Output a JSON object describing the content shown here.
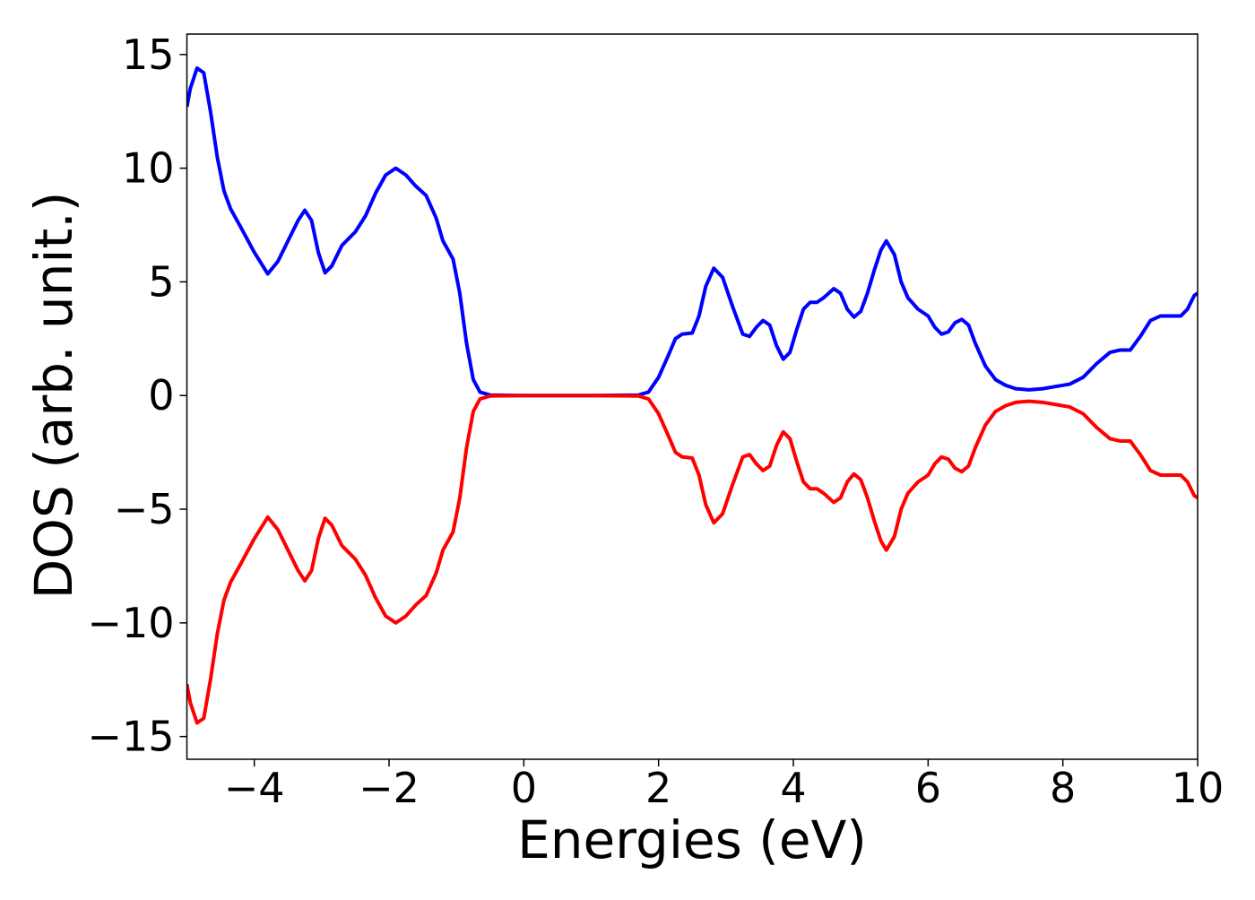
{
  "chart_data": {
    "type": "line",
    "x_label": "Energies (eV)",
    "y_label": "DOS (arb. unit.)",
    "x": [
      -5,
      -4.95,
      -4.85,
      -4.75,
      -4.65,
      -4.55,
      -4.45,
      -4.35,
      -4.2,
      -4.0,
      -3.8,
      -3.65,
      -3.5,
      -3.35,
      -3.25,
      -3.15,
      -3.05,
      -2.95,
      -2.85,
      -2.7,
      -2.5,
      -2.35,
      -2.2,
      -2.05,
      -1.9,
      -1.75,
      -1.6,
      -1.45,
      -1.3,
      -1.2,
      -1.05,
      -0.95,
      -0.85,
      -0.75,
      -0.65,
      -0.5,
      0,
      1.0,
      1.7,
      1.85,
      2.0,
      2.15,
      2.25,
      2.35,
      2.5,
      2.6,
      2.7,
      2.82,
      2.95,
      3.1,
      3.25,
      3.35,
      3.45,
      3.55,
      3.65,
      3.75,
      3.85,
      3.95,
      4.05,
      4.15,
      4.25,
      4.35,
      4.45,
      4.6,
      4.7,
      4.8,
      4.9,
      5.0,
      5.1,
      5.2,
      5.3,
      5.38,
      5.5,
      5.6,
      5.7,
      5.85,
      6.0,
      6.1,
      6.2,
      6.3,
      6.4,
      6.5,
      6.6,
      6.7,
      6.85,
      7.0,
      7.15,
      7.3,
      7.5,
      7.7,
      7.9,
      8.1,
      8.3,
      8.5,
      8.7,
      8.85,
      9.0,
      9.15,
      9.3,
      9.45,
      9.6,
      9.75,
      9.85,
      9.95,
      10
    ],
    "series": [
      {
        "color": "#0000ff",
        "values": [
          12.7,
          13.5,
          14.4,
          14.2,
          12.5,
          10.5,
          9.0,
          8.2,
          7.4,
          6.3,
          5.35,
          5.9,
          6.8,
          7.7,
          8.15,
          7.7,
          6.3,
          5.4,
          5.7,
          6.6,
          7.2,
          7.9,
          8.9,
          9.7,
          10.0,
          9.7,
          9.2,
          8.8,
          7.8,
          6.8,
          6.0,
          4.5,
          2.3,
          0.7,
          0.15,
          0.02,
          0,
          0,
          0.02,
          0.15,
          0.8,
          1.8,
          2.5,
          2.7,
          2.75,
          3.5,
          4.8,
          5.6,
          5.2,
          3.9,
          2.7,
          2.6,
          3.0,
          3.3,
          3.1,
          2.2,
          1.6,
          1.9,
          2.9,
          3.8,
          4.1,
          4.1,
          4.3,
          4.7,
          4.5,
          3.8,
          3.45,
          3.7,
          4.5,
          5.5,
          6.4,
          6.8,
          6.2,
          5.0,
          4.3,
          3.8,
          3.5,
          3.0,
          2.7,
          2.8,
          3.2,
          3.35,
          3.1,
          2.3,
          1.3,
          0.7,
          0.45,
          0.3,
          0.25,
          0.3,
          0.4,
          0.5,
          0.8,
          1.4,
          1.9,
          2.0,
          2.0,
          2.6,
          3.3,
          3.5,
          3.5,
          3.5,
          3.8,
          4.4,
          4.5
        ]
      },
      {
        "color": "#ff0000",
        "values": [
          -12.7,
          -13.5,
          -14.4,
          -14.2,
          -12.5,
          -10.5,
          -9.0,
          -8.2,
          -7.4,
          -6.3,
          -5.35,
          -5.9,
          -6.8,
          -7.7,
          -8.15,
          -7.7,
          -6.3,
          -5.4,
          -5.7,
          -6.6,
          -7.2,
          -7.9,
          -8.9,
          -9.7,
          -10.0,
          -9.7,
          -9.2,
          -8.8,
          -7.8,
          -6.8,
          -6.0,
          -4.5,
          -2.3,
          -0.7,
          -0.15,
          -0.02,
          0,
          0,
          -0.02,
          -0.15,
          -0.8,
          -1.8,
          -2.5,
          -2.7,
          -2.75,
          -3.5,
          -4.8,
          -5.6,
          -5.2,
          -3.9,
          -2.7,
          -2.6,
          -3.0,
          -3.3,
          -3.1,
          -2.2,
          -1.6,
          -1.9,
          -2.9,
          -3.8,
          -4.1,
          -4.1,
          -4.3,
          -4.7,
          -4.5,
          -3.8,
          -3.45,
          -3.7,
          -4.5,
          -5.5,
          -6.4,
          -6.8,
          -6.2,
          -5.0,
          -4.3,
          -3.8,
          -3.5,
          -3.0,
          -2.7,
          -2.8,
          -3.2,
          -3.35,
          -3.1,
          -2.3,
          -1.3,
          -0.7,
          -0.45,
          -0.3,
          -0.25,
          -0.3,
          -0.4,
          -0.5,
          -0.8,
          -1.4,
          -1.9,
          -2.0,
          -2.0,
          -2.6,
          -3.3,
          -3.5,
          -3.5,
          -3.5,
          -3.8,
          -4.4,
          -4.5
        ]
      }
    ],
    "xlim": [
      -5,
      10
    ],
    "xticks": [
      {
        "value": -4,
        "label": "−4"
      },
      {
        "value": -2,
        "label": "−2"
      },
      0,
      2,
      4,
      6,
      8,
      10
    ],
    "ylim": [
      -16,
      15.9
    ],
    "yticks": [
      {
        "value": -15,
        "label": "−15"
      },
      {
        "value": -10,
        "label": "−10"
      },
      {
        "value": -5,
        "label": "−5"
      },
      0,
      5,
      10,
      15
    ],
    "grid": false
  }
}
